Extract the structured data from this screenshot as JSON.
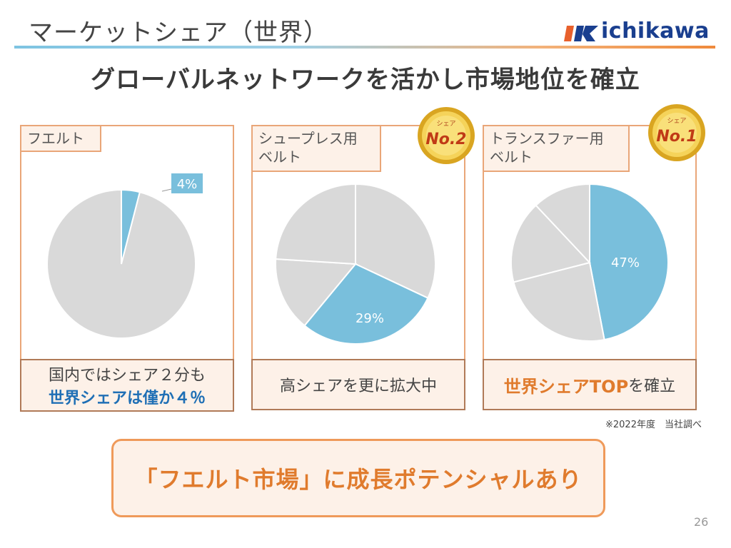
{
  "header": {
    "title": "マーケットシェア（世界）",
    "logo_text": "ichikawa",
    "headline": "グローバルネットワークを活かし市場地位を確立"
  },
  "colors": {
    "highlight": "#79bfdc",
    "other": "#d9d9d9",
    "panel_border": "#e9a678",
    "panel_fill": "#fdf1e8",
    "accent_orange": "#e07b2d",
    "accent_blue": "#1f6fb5",
    "gold": "#e6b422"
  },
  "chart_data": [
    {
      "type": "pie",
      "title": "フエルト",
      "slices": [
        {
          "label": "4%",
          "value": 4,
          "highlight": true
        },
        {
          "label": "",
          "value": 96,
          "highlight": false
        }
      ]
    },
    {
      "type": "pie",
      "title": "シュープレス用ベルト",
      "slices": [
        {
          "label": "",
          "value": 32,
          "highlight": false
        },
        {
          "label": "29%",
          "value": 29,
          "highlight": true
        },
        {
          "label": "",
          "value": 15,
          "highlight": false
        },
        {
          "label": "",
          "value": 24,
          "highlight": false
        }
      ]
    },
    {
      "type": "pie",
      "title": "トランスファー用ベルト",
      "slices": [
        {
          "label": "47%",
          "value": 47,
          "highlight": true
        },
        {
          "label": "",
          "value": 24,
          "highlight": false
        },
        {
          "label": "",
          "value": 17,
          "highlight": false
        },
        {
          "label": "",
          "value": 12,
          "highlight": false
        }
      ]
    }
  ],
  "panels": [
    {
      "label": "フエルト",
      "caption_line1": "国内ではシェア２分も",
      "caption_line2": "世界シェアは僅か４％"
    },
    {
      "label_line1": "シュープレス用",
      "label_line2": "ベルト",
      "caption": "高シェアを更に拡大中",
      "badge": {
        "top": "シェア",
        "main": "No.2"
      }
    },
    {
      "label_line1": "トランスファー用",
      "label_line2": "ベルト",
      "caption_accent": "世界シェアTOP",
      "caption_rest": "を確立",
      "badge": {
        "top": "シェア",
        "main": "No.1"
      }
    }
  ],
  "footnote": "※2022年度　当社調べ",
  "callout": "「フエルト市場」に成長ポテンシャルあり",
  "page_number": "26"
}
